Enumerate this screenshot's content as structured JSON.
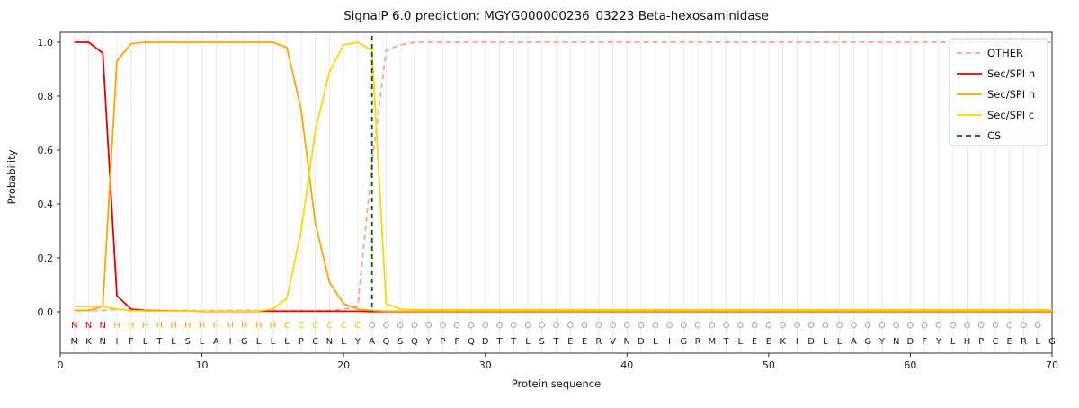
{
  "figure": {
    "title": "SignalP 6.0 prediction: MGYG000000236_03223 Beta-hexosaminidase",
    "xlabel": "Protein sequence",
    "ylabel": "Probability"
  },
  "chart_data": {
    "type": "line",
    "title": "SignalP 6.0 prediction: MGYG000000236_03223 Beta-hexosaminidase",
    "xlabel": "Protein sequence",
    "ylabel": "Probability",
    "xlim": [
      0,
      70
    ],
    "ylim": [
      0,
      1.05
    ],
    "x_ticks": [
      0,
      10,
      20,
      30,
      40,
      50,
      60,
      70
    ],
    "y_ticks": [
      0.0,
      0.2,
      0.4,
      0.6,
      0.8,
      1.0
    ],
    "grid": "light vertical gridline at every residue position 1-70",
    "legend_position": "upper right",
    "cs_position": 22,
    "cs_color": "#006400",
    "sequence": "MKNIFLTLSLAIGLLLPCNLYAQSQYPFQDTTLSTEERVNDLIGRMTLEEKIDLLAGYNDFYLHPCERLG",
    "region_labels": "NNNHHHHHHHHHHHHCCCCCCOOOOOOOOOOOOOOOOOOOOOOOOOOOOOOOOOOOOOOOOOOOOOOOO",
    "label_colors": {
      "N": "#e60000",
      "H": "#ffa500",
      "C": "#f5c400",
      "O": "#a0a0a0"
    },
    "sequence_color": "#1a1a1a",
    "series": [
      {
        "id": "other",
        "name": "OTHER",
        "color": "#f79f9f",
        "dash": true,
        "values": [
          0.005,
          0.005,
          0.005,
          0.01,
          0.005,
          0.005,
          0.005,
          0.005,
          0.005,
          0.005,
          0.005,
          0.005,
          0.005,
          0.005,
          0.005,
          0.005,
          0.005,
          0.005,
          0.005,
          0.01,
          0.02,
          0.55,
          0.97,
          0.99,
          1.0,
          1.0,
          1.0,
          1.0,
          1.0,
          1.0,
          1.0,
          1.0,
          1.0,
          1.0,
          1.0,
          1.0,
          1.0,
          1.0,
          1.0,
          1.0,
          1.0,
          1.0,
          1.0,
          1.0,
          1.0,
          1.0,
          1.0,
          1.0,
          1.0,
          1.0,
          1.0,
          1.0,
          1.0,
          1.0,
          1.0,
          1.0,
          1.0,
          1.0,
          1.0,
          1.0,
          1.0,
          1.0,
          1.0,
          1.0,
          1.0,
          1.0,
          1.0,
          1.0,
          1.0,
          1.0
        ]
      },
      {
        "id": "sec-spi-n",
        "name": "Sec/SPI n",
        "color": "#e60000",
        "dash": false,
        "values": [
          1.0,
          1.0,
          0.96,
          0.06,
          0.01,
          0.005,
          0.004,
          0.003,
          0.003,
          0.002,
          0.002,
          0.002,
          0.002,
          0.002,
          0.002,
          0.002,
          0.002,
          0.002,
          0.002,
          0.002,
          0.002,
          0.001,
          0.001,
          0.001,
          0.001,
          0.001,
          0.001,
          0.001,
          0.001,
          0.001,
          0.001,
          0.001,
          0.001,
          0.001,
          0.001,
          0.001,
          0.001,
          0.001,
          0.001,
          0.001,
          0.001,
          0.001,
          0.001,
          0.001,
          0.001,
          0.001,
          0.001,
          0.001,
          0.001,
          0.001,
          0.001,
          0.001,
          0.001,
          0.001,
          0.001,
          0.001,
          0.001,
          0.001,
          0.001,
          0.001,
          0.001,
          0.001,
          0.001,
          0.001,
          0.001,
          0.001,
          0.001,
          0.001,
          0.001,
          0.001
        ]
      },
      {
        "id": "sec-spi-h",
        "name": "Sec/SPI h",
        "color": "#ffa500",
        "dash": false,
        "values": [
          0.005,
          0.005,
          0.02,
          0.93,
          0.995,
          1.0,
          1.0,
          1.0,
          1.0,
          1.0,
          1.0,
          1.0,
          1.0,
          1.0,
          1.0,
          0.98,
          0.75,
          0.33,
          0.11,
          0.03,
          0.01,
          0.005,
          0.002,
          0.002,
          0.002,
          0.002,
          0.002,
          0.002,
          0.002,
          0.002,
          0.002,
          0.002,
          0.002,
          0.002,
          0.002,
          0.002,
          0.002,
          0.002,
          0.002,
          0.002,
          0.002,
          0.002,
          0.002,
          0.002,
          0.002,
          0.002,
          0.002,
          0.002,
          0.002,
          0.002,
          0.002,
          0.002,
          0.002,
          0.002,
          0.002,
          0.002,
          0.002,
          0.002,
          0.002,
          0.002,
          0.002,
          0.002,
          0.002,
          0.002,
          0.002,
          0.002,
          0.002,
          0.002,
          0.002,
          0.002
        ]
      },
      {
        "id": "sec-spi-c",
        "name": "Sec/SPI c",
        "color": "#ffd700",
        "dash": false,
        "values": [
          0.02,
          0.02,
          0.02,
          0.01,
          0.005,
          0.003,
          0.003,
          0.003,
          0.003,
          0.003,
          0.003,
          0.003,
          0.003,
          0.003,
          0.01,
          0.05,
          0.3,
          0.67,
          0.89,
          0.99,
          1.0,
          0.97,
          0.03,
          0.01,
          0.008,
          0.008,
          0.008,
          0.008,
          0.008,
          0.008,
          0.008,
          0.008,
          0.008,
          0.008,
          0.008,
          0.008,
          0.008,
          0.008,
          0.008,
          0.008,
          0.008,
          0.008,
          0.008,
          0.008,
          0.008,
          0.008,
          0.008,
          0.008,
          0.008,
          0.008,
          0.008,
          0.008,
          0.008,
          0.008,
          0.008,
          0.008,
          0.008,
          0.008,
          0.008,
          0.008,
          0.008,
          0.008,
          0.008,
          0.008,
          0.008,
          0.008,
          0.008,
          0.008,
          0.008,
          0.008
        ]
      }
    ]
  },
  "legend": {
    "entries": [
      {
        "label": "OTHER",
        "color": "#f79f9f",
        "dash": true
      },
      {
        "label": "Sec/SPI n",
        "color": "#e60000",
        "dash": false
      },
      {
        "label": "Sec/SPI h",
        "color": "#ffa500",
        "dash": false
      },
      {
        "label": "Sec/SPI c",
        "color": "#ffd700",
        "dash": false
      },
      {
        "label": "CS",
        "color": "#006400",
        "dash": true
      }
    ]
  }
}
